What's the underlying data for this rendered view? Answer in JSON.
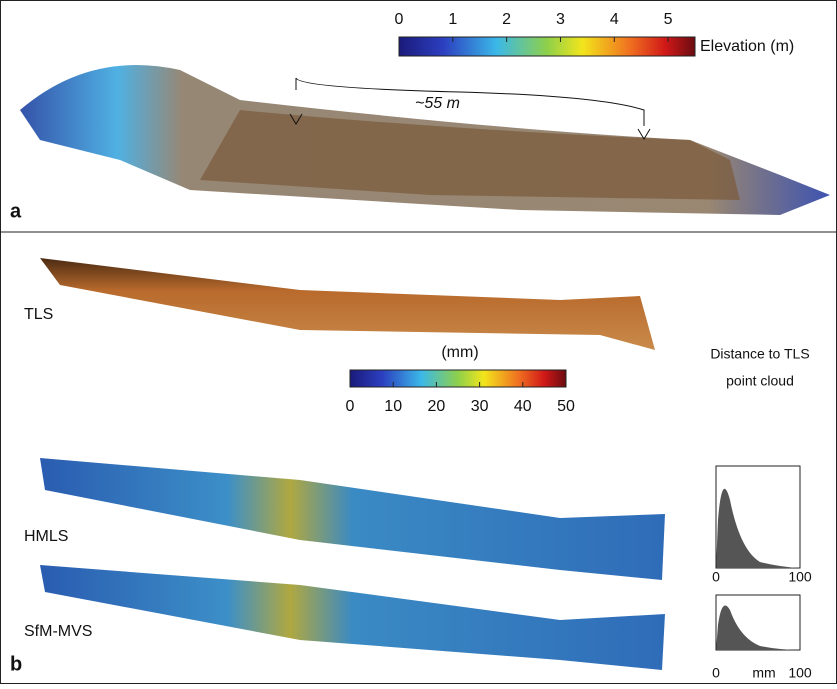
{
  "panel_a": {
    "label": "a",
    "annotation": "~55 m",
    "colorbar": {
      "title": "Elevation (m)",
      "lim": [
        0,
        5.5
      ],
      "ticks": [
        0,
        1,
        2,
        3,
        4,
        5
      ]
    }
  },
  "panel_b": {
    "label": "b",
    "rows": [
      "TLS",
      "HMLS",
      "SfM-MVS"
    ],
    "colorbar": {
      "title": "(mm)",
      "lim": [
        0,
        50
      ],
      "ticks": [
        0,
        10,
        20,
        30,
        40,
        50
      ]
    },
    "histogram_title": [
      "Distance to TLS",
      "point cloud"
    ],
    "histograms": [
      {
        "xlim": [
          0,
          100
        ],
        "xticks": [
          0,
          100
        ]
      },
      {
        "xlim": [
          0,
          100
        ],
        "xticks": [
          0,
          100
        ],
        "xlabel": "mm"
      }
    ]
  }
}
